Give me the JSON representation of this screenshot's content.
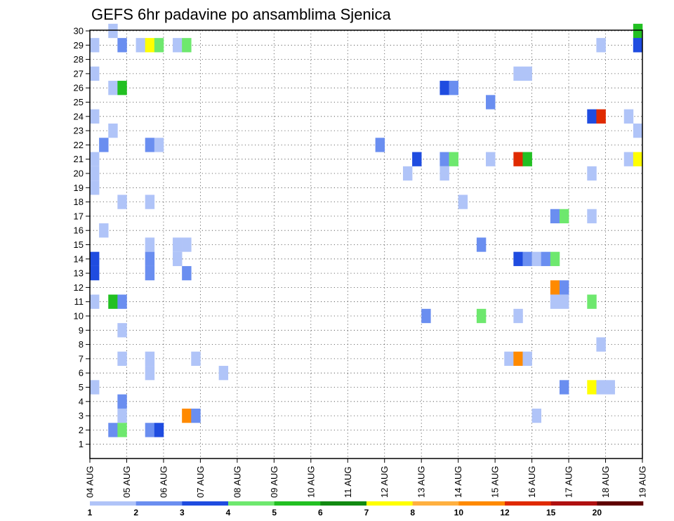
{
  "chart_data": {
    "type": "heatmap",
    "title": "GEFS 6hr padavine po ansamblima Sjenica",
    "x_ticks": [
      "04 AUG",
      "05 AUG",
      "06 AUG",
      "07 AUG",
      "08 AUG",
      "09 AUG",
      "10 AUG",
      "11 AUG",
      "12 AUG",
      "13 AUG",
      "14 AUG",
      "15 AUG",
      "16 AUG",
      "17 AUG",
      "18 AUG",
      "19 AUG"
    ],
    "y_ticks": [
      "1",
      "2",
      "3",
      "4",
      "5",
      "6",
      "7",
      "8",
      "9",
      "10",
      "11",
      "12",
      "13",
      "14",
      "15",
      "16",
      "17",
      "18",
      "19",
      "20",
      "21",
      "22",
      "23",
      "24",
      "25",
      "26",
      "27",
      "28",
      "29",
      "30"
    ],
    "steps_per_day": 4,
    "grid": true,
    "legend_position": "bottom",
    "legend": {
      "labels": [
        "1",
        "2",
        "3",
        "4",
        "5",
        "6",
        "7",
        "8",
        "10",
        "12",
        "15",
        "20"
      ],
      "colors": [
        "#b0c4f8",
        "#6a8ef0",
        "#1f4ce0",
        "#6ee86e",
        "#22c022",
        "#118a11",
        "#ffff00",
        "#ffb040",
        "#ff8a00",
        "#e02a00",
        "#b01010",
        "#600000"
      ]
    },
    "cells": [
      [
        0,
        29,
        1
      ],
      [
        0,
        27,
        1
      ],
      [
        0,
        24,
        1
      ],
      [
        0,
        21,
        1
      ],
      [
        0,
        20,
        1
      ],
      [
        0,
        19,
        1
      ],
      [
        0,
        14,
        3
      ],
      [
        0,
        13,
        3
      ],
      [
        0,
        11,
        1
      ],
      [
        0,
        5,
        1
      ],
      [
        1,
        22,
        2
      ],
      [
        1,
        16,
        1
      ],
      [
        2,
        30,
        1
      ],
      [
        2,
        26,
        1
      ],
      [
        2,
        23,
        1
      ],
      [
        2,
        11,
        5
      ],
      [
        2,
        2,
        2
      ],
      [
        3,
        29,
        2
      ],
      [
        3,
        26,
        5
      ],
      [
        3,
        18,
        1
      ],
      [
        3,
        11,
        2
      ],
      [
        3,
        9,
        1
      ],
      [
        3,
        7,
        1
      ],
      [
        3,
        4,
        2
      ],
      [
        3,
        3,
        1
      ],
      [
        3,
        2,
        4
      ],
      [
        5,
        29,
        1
      ],
      [
        6,
        29,
        7
      ],
      [
        6,
        22,
        2
      ],
      [
        6,
        18,
        1
      ],
      [
        6,
        15,
        1
      ],
      [
        6,
        14,
        2
      ],
      [
        6,
        13,
        2
      ],
      [
        6,
        7,
        1
      ],
      [
        6,
        6,
        1
      ],
      [
        6,
        2,
        2
      ],
      [
        7,
        29,
        4
      ],
      [
        7,
        22,
        1
      ],
      [
        7,
        2,
        3
      ],
      [
        9,
        29,
        1
      ],
      [
        9,
        15,
        1
      ],
      [
        9,
        14,
        1
      ],
      [
        10,
        29,
        4
      ],
      [
        10,
        15,
        1
      ],
      [
        10,
        13,
        2
      ],
      [
        10,
        3,
        9
      ],
      [
        11,
        7,
        1
      ],
      [
        11,
        3,
        2
      ],
      [
        14,
        6,
        1
      ],
      [
        31,
        22,
        2
      ],
      [
        34,
        20,
        1
      ],
      [
        35,
        21,
        3
      ],
      [
        36,
        10,
        2
      ],
      [
        38,
        26,
        3
      ],
      [
        38,
        21,
        2
      ],
      [
        38,
        20,
        1
      ],
      [
        39,
        26,
        2
      ],
      [
        39,
        21,
        4
      ],
      [
        40,
        18,
        1
      ],
      [
        42,
        15,
        2
      ],
      [
        42,
        10,
        4
      ],
      [
        43,
        25,
        2
      ],
      [
        43,
        21,
        1
      ],
      [
        45,
        7,
        1
      ],
      [
        46,
        27,
        1
      ],
      [
        46,
        21,
        10
      ],
      [
        46,
        14,
        3
      ],
      [
        46,
        10,
        1
      ],
      [
        46,
        7,
        9
      ],
      [
        47,
        27,
        1
      ],
      [
        47,
        21,
        5
      ],
      [
        47,
        14,
        2
      ],
      [
        47,
        7,
        1
      ],
      [
        48,
        14,
        1
      ],
      [
        48,
        3,
        1
      ],
      [
        49,
        14,
        2
      ],
      [
        50,
        17,
        2
      ],
      [
        50,
        14,
        4
      ],
      [
        50,
        12,
        9
      ],
      [
        50,
        11,
        1
      ],
      [
        51,
        17,
        4
      ],
      [
        51,
        12,
        2
      ],
      [
        51,
        11,
        1
      ],
      [
        51,
        5,
        2
      ],
      [
        54,
        24,
        3
      ],
      [
        54,
        20,
        1
      ],
      [
        54,
        17,
        1
      ],
      [
        54,
        11,
        4
      ],
      [
        54,
        5,
        7
      ],
      [
        55,
        24,
        10
      ],
      [
        55,
        29,
        1
      ],
      [
        55,
        8,
        1
      ],
      [
        55,
        5,
        1
      ],
      [
        56,
        5,
        1
      ],
      [
        58,
        24,
        1
      ],
      [
        58,
        21,
        1
      ],
      [
        59,
        30,
        5
      ],
      [
        59,
        29,
        3
      ],
      [
        59,
        23,
        1
      ],
      [
        59,
        21,
        7
      ],
      [
        59,
        29,
        3
      ]
    ]
  }
}
